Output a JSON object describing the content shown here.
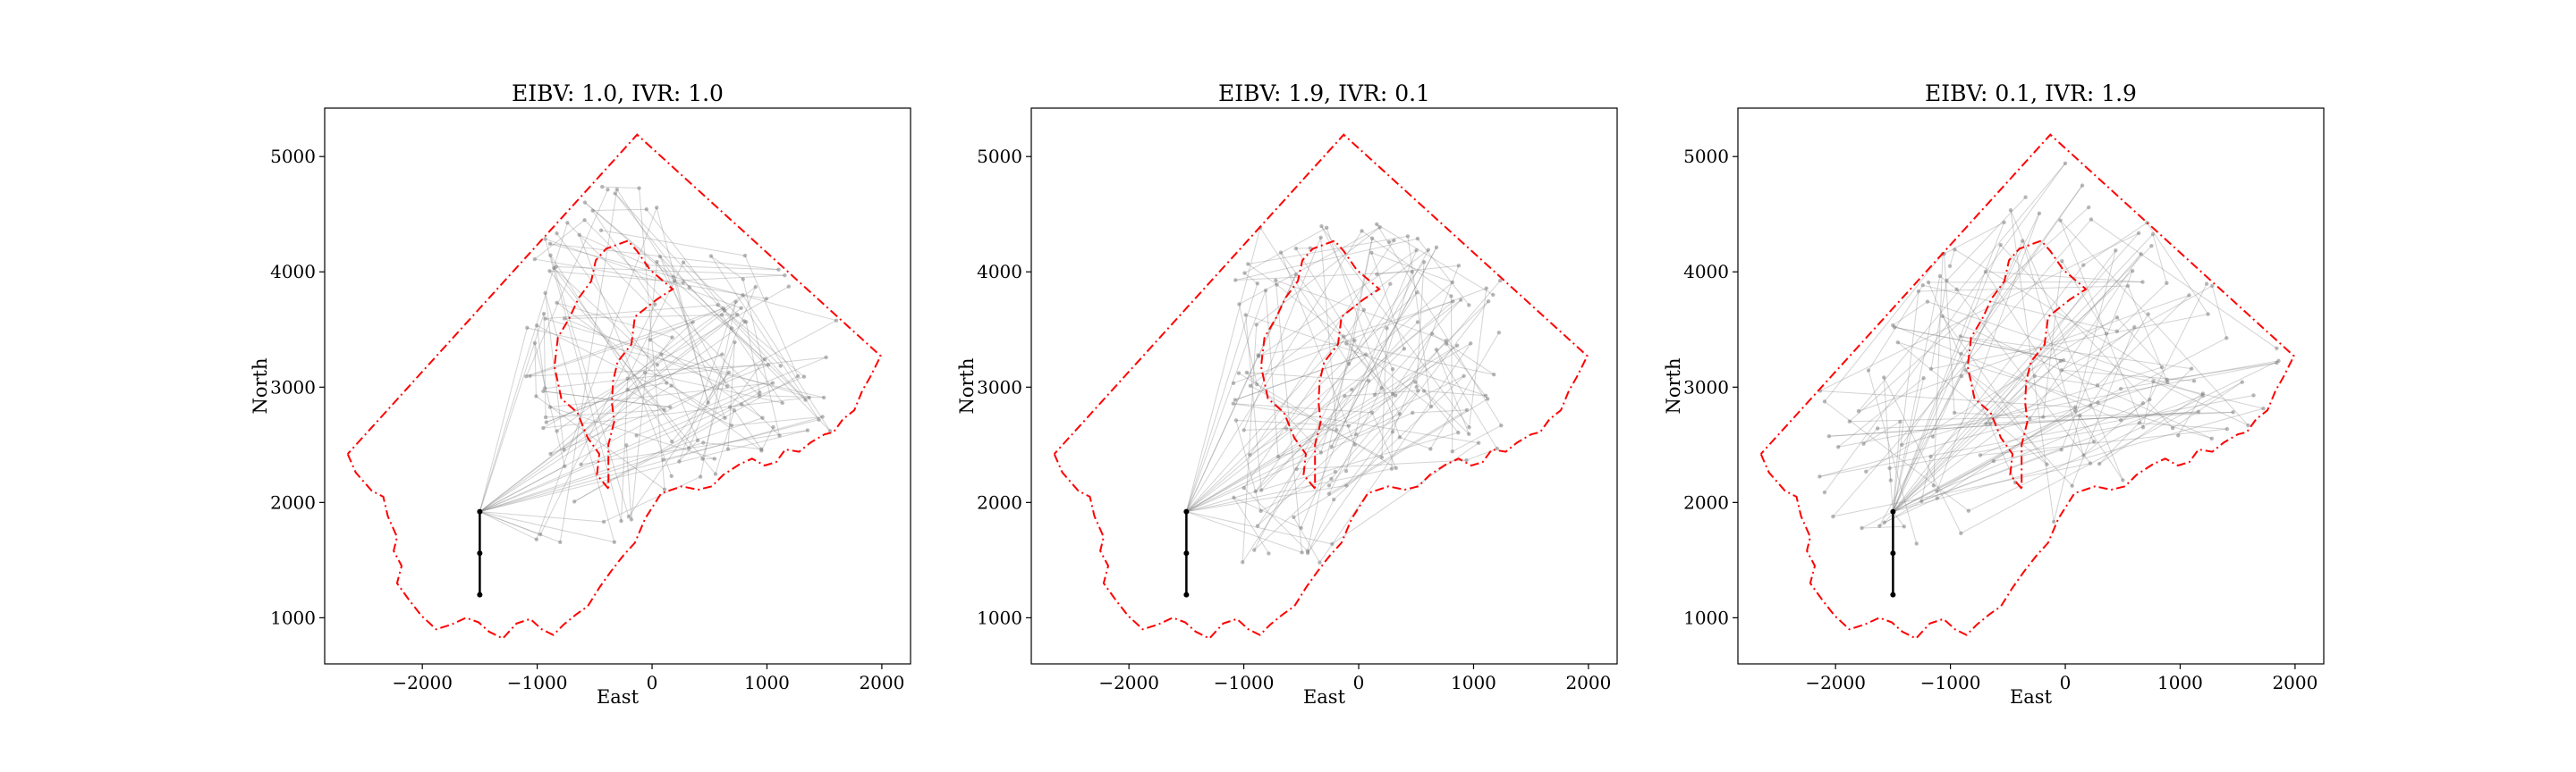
{
  "chart_data": [
    {
      "type": "line",
      "title": "EIBV: 1.0, IVR: 1.0",
      "xlabel": "East",
      "ylabel": "North",
      "xlim": [
        -2850,
        2250
      ],
      "ylim": [
        600,
        5420
      ],
      "xticks": [
        -2000,
        -1000,
        0,
        1000,
        2000
      ],
      "yticks": [
        1000,
        2000,
        3000,
        4000,
        5000
      ],
      "xtick_labels": [
        "−2000",
        "−1000",
        "0",
        "1000",
        "2000"
      ],
      "ytick_labels": [
        "1000",
        "2000",
        "3000",
        "4000",
        "5000"
      ],
      "outer_boundary": [
        [
          -2650,
          2420
        ],
        [
          -2580,
          2260
        ],
        [
          -2440,
          2100
        ],
        [
          -2340,
          2050
        ],
        [
          -2300,
          1880
        ],
        [
          -2220,
          1700
        ],
        [
          -2250,
          1580
        ],
        [
          -2180,
          1450
        ],
        [
          -2220,
          1300
        ],
        [
          -2120,
          1160
        ],
        [
          -2010,
          1020
        ],
        [
          -1880,
          900
        ],
        [
          -1750,
          940
        ],
        [
          -1620,
          1000
        ],
        [
          -1510,
          960
        ],
        [
          -1420,
          880
        ],
        [
          -1300,
          820
        ],
        [
          -1180,
          950
        ],
        [
          -1060,
          990
        ],
        [
          -960,
          900
        ],
        [
          -860,
          850
        ],
        [
          -770,
          940
        ],
        [
          -660,
          1030
        ],
        [
          -560,
          1100
        ],
        [
          -460,
          1260
        ],
        [
          -360,
          1400
        ],
        [
          -250,
          1540
        ],
        [
          -150,
          1650
        ],
        [
          -60,
          1860
        ],
        [
          80,
          2080
        ],
        [
          260,
          2140
        ],
        [
          400,
          2110
        ],
        [
          520,
          2140
        ],
        [
          620,
          2240
        ],
        [
          760,
          2330
        ],
        [
          870,
          2380
        ],
        [
          980,
          2320
        ],
        [
          1080,
          2350
        ],
        [
          1160,
          2460
        ],
        [
          1280,
          2440
        ],
        [
          1380,
          2520
        ],
        [
          1500,
          2590
        ],
        [
          1580,
          2610
        ],
        [
          1660,
          2720
        ],
        [
          1760,
          2800
        ],
        [
          1830,
          2970
        ],
        [
          1900,
          3090
        ],
        [
          1990,
          3270
        ],
        [
          -130,
          5190
        ],
        [
          -2650,
          2420
        ]
      ],
      "inner_boundary": [
        [
          -380,
          2120
        ],
        [
          -480,
          2240
        ],
        [
          -460,
          2420
        ],
        [
          -560,
          2560
        ],
        [
          -650,
          2780
        ],
        [
          -790,
          2900
        ],
        [
          -850,
          3180
        ],
        [
          -820,
          3430
        ],
        [
          -720,
          3600
        ],
        [
          -640,
          3770
        ],
        [
          -530,
          3920
        ],
        [
          -490,
          4100
        ],
        [
          -400,
          4200
        ],
        [
          -210,
          4270
        ],
        [
          -130,
          4180
        ],
        [
          -20,
          4020
        ],
        [
          180,
          3850
        ],
        [
          40,
          3760
        ],
        [
          -150,
          3610
        ],
        [
          -180,
          3370
        ],
        [
          -300,
          3220
        ],
        [
          -340,
          3050
        ],
        [
          -350,
          2870
        ],
        [
          -330,
          2700
        ],
        [
          -380,
          2500
        ],
        [
          -380,
          2120
        ]
      ],
      "path": [
        [
          -1500,
          1200
        ],
        [
          -1500,
          1560
        ],
        [
          -1500,
          1920
        ]
      ],
      "explored_cloud": {
        "x_range": [
          -1100,
          1650
        ],
        "y_range": [
          1650,
          4780
        ]
      }
    },
    {
      "type": "line",
      "title": "EIBV: 1.9, IVR: 0.1",
      "xlabel": "East",
      "ylabel": "North",
      "xlim": [
        -2850,
        2250
      ],
      "ylim": [
        600,
        5420
      ],
      "xticks": [
        -2000,
        -1000,
        0,
        1000,
        2000
      ],
      "yticks": [
        1000,
        2000,
        3000,
        4000,
        5000
      ],
      "xtick_labels": [
        "−2000",
        "−1000",
        "0",
        "1000",
        "2000"
      ],
      "ytick_labels": [
        "1000",
        "2000",
        "3000",
        "4000",
        "5000"
      ],
      "outer_boundary": [
        [
          -2650,
          2420
        ],
        [
          -2580,
          2260
        ],
        [
          -2440,
          2100
        ],
        [
          -2340,
          2050
        ],
        [
          -2300,
          1880
        ],
        [
          -2220,
          1700
        ],
        [
          -2250,
          1580
        ],
        [
          -2180,
          1450
        ],
        [
          -2220,
          1300
        ],
        [
          -2120,
          1160
        ],
        [
          -2010,
          1020
        ],
        [
          -1880,
          900
        ],
        [
          -1750,
          940
        ],
        [
          -1620,
          1000
        ],
        [
          -1510,
          960
        ],
        [
          -1420,
          880
        ],
        [
          -1300,
          820
        ],
        [
          -1180,
          950
        ],
        [
          -1060,
          990
        ],
        [
          -960,
          900
        ],
        [
          -860,
          850
        ],
        [
          -770,
          940
        ],
        [
          -660,
          1030
        ],
        [
          -560,
          1100
        ],
        [
          -460,
          1260
        ],
        [
          -360,
          1400
        ],
        [
          -250,
          1540
        ],
        [
          -150,
          1650
        ],
        [
          -60,
          1860
        ],
        [
          80,
          2080
        ],
        [
          260,
          2140
        ],
        [
          400,
          2110
        ],
        [
          520,
          2140
        ],
        [
          620,
          2240
        ],
        [
          760,
          2330
        ],
        [
          870,
          2380
        ],
        [
          980,
          2320
        ],
        [
          1080,
          2350
        ],
        [
          1160,
          2460
        ],
        [
          1280,
          2440
        ],
        [
          1380,
          2520
        ],
        [
          1500,
          2590
        ],
        [
          1580,
          2610
        ],
        [
          1660,
          2720
        ],
        [
          1760,
          2800
        ],
        [
          1830,
          2970
        ],
        [
          1900,
          3090
        ],
        [
          1990,
          3270
        ],
        [
          -130,
          5190
        ],
        [
          -2650,
          2420
        ]
      ],
      "inner_boundary": [
        [
          -380,
          2120
        ],
        [
          -480,
          2240
        ],
        [
          -460,
          2420
        ],
        [
          -560,
          2560
        ],
        [
          -650,
          2780
        ],
        [
          -790,
          2900
        ],
        [
          -850,
          3180
        ],
        [
          -820,
          3430
        ],
        [
          -720,
          3600
        ],
        [
          -640,
          3770
        ],
        [
          -530,
          3920
        ],
        [
          -490,
          4100
        ],
        [
          -400,
          4200
        ],
        [
          -210,
          4270
        ],
        [
          -130,
          4180
        ],
        [
          -20,
          4020
        ],
        [
          180,
          3850
        ],
        [
          40,
          3760
        ],
        [
          -150,
          3610
        ],
        [
          -180,
          3370
        ],
        [
          -300,
          3220
        ],
        [
          -340,
          3050
        ],
        [
          -350,
          2870
        ],
        [
          -330,
          2700
        ],
        [
          -380,
          2500
        ],
        [
          -380,
          2120
        ]
      ],
      "path": [
        [
          -1500,
          1200
        ],
        [
          -1500,
          1560
        ],
        [
          -1500,
          1920
        ]
      ],
      "explored_cloud": {
        "x_range": [
          -1100,
          1250
        ],
        "y_range": [
          1450,
          4420
        ]
      }
    },
    {
      "type": "line",
      "title": "EIBV: 0.1, IVR: 1.9",
      "xlabel": "East",
      "ylabel": "North",
      "xlim": [
        -2850,
        2250
      ],
      "ylim": [
        600,
        5420
      ],
      "xticks": [
        -2000,
        -1000,
        0,
        1000,
        2000
      ],
      "yticks": [
        1000,
        2000,
        3000,
        4000,
        5000
      ],
      "xtick_labels": [
        "−2000",
        "−1000",
        "0",
        "1000",
        "2000"
      ],
      "ytick_labels": [
        "1000",
        "2000",
        "3000",
        "4000",
        "5000"
      ],
      "outer_boundary": [
        [
          -2650,
          2420
        ],
        [
          -2580,
          2260
        ],
        [
          -2440,
          2100
        ],
        [
          -2340,
          2050
        ],
        [
          -2300,
          1880
        ],
        [
          -2220,
          1700
        ],
        [
          -2250,
          1580
        ],
        [
          -2180,
          1450
        ],
        [
          -2220,
          1300
        ],
        [
          -2120,
          1160
        ],
        [
          -2010,
          1020
        ],
        [
          -1880,
          900
        ],
        [
          -1750,
          940
        ],
        [
          -1620,
          1000
        ],
        [
          -1510,
          960
        ],
        [
          -1420,
          880
        ],
        [
          -1300,
          820
        ],
        [
          -1180,
          950
        ],
        [
          -1060,
          990
        ],
        [
          -960,
          900
        ],
        [
          -860,
          850
        ],
        [
          -770,
          940
        ],
        [
          -660,
          1030
        ],
        [
          -560,
          1100
        ],
        [
          -460,
          1260
        ],
        [
          -360,
          1400
        ],
        [
          -250,
          1540
        ],
        [
          -150,
          1650
        ],
        [
          -60,
          1860
        ],
        [
          80,
          2080
        ],
        [
          260,
          2140
        ],
        [
          400,
          2110
        ],
        [
          520,
          2140
        ],
        [
          620,
          2240
        ],
        [
          760,
          2330
        ],
        [
          870,
          2380
        ],
        [
          980,
          2320
        ],
        [
          1080,
          2350
        ],
        [
          1160,
          2460
        ],
        [
          1280,
          2440
        ],
        [
          1380,
          2520
        ],
        [
          1500,
          2590
        ],
        [
          1580,
          2610
        ],
        [
          1660,
          2720
        ],
        [
          1760,
          2800
        ],
        [
          1830,
          2970
        ],
        [
          1900,
          3090
        ],
        [
          1990,
          3270
        ],
        [
          -130,
          5190
        ],
        [
          -2650,
          2420
        ]
      ],
      "inner_boundary": [
        [
          -380,
          2120
        ],
        [
          -480,
          2240
        ],
        [
          -460,
          2420
        ],
        [
          -560,
          2560
        ],
        [
          -650,
          2780
        ],
        [
          -790,
          2900
        ],
        [
          -850,
          3180
        ],
        [
          -820,
          3430
        ],
        [
          -720,
          3600
        ],
        [
          -640,
          3770
        ],
        [
          -530,
          3920
        ],
        [
          -490,
          4100
        ],
        [
          -400,
          4200
        ],
        [
          -210,
          4270
        ],
        [
          -130,
          4180
        ],
        [
          -20,
          4020
        ],
        [
          180,
          3850
        ],
        [
          40,
          3760
        ],
        [
          -150,
          3610
        ],
        [
          -180,
          3370
        ],
        [
          -300,
          3220
        ],
        [
          -340,
          3050
        ],
        [
          -350,
          2870
        ],
        [
          -330,
          2700
        ],
        [
          -380,
          2500
        ],
        [
          -380,
          2120
        ]
      ],
      "path": [
        [
          -1500,
          1200
        ],
        [
          -1500,
          1560
        ],
        [
          -1500,
          1920
        ]
      ],
      "explored_cloud": {
        "x_range": [
          -2200,
          1900
        ],
        "y_range": [
          1620,
          4960
        ]
      }
    }
  ],
  "colors": {
    "boundary": "#ff0000",
    "path": "#000000",
    "explored": "#808080"
  }
}
